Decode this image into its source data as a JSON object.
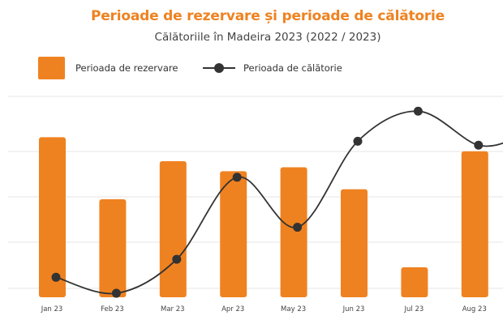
{
  "chart_data": {
    "type": "bar+line",
    "title": "Perioade de rezervare și perioade de călătorie",
    "subtitle": "Călătoriile în Madeira 2023 (2022 / 2023)",
    "categories": [
      "Jan 23",
      "Feb 23",
      "Mar 23",
      "Apr 23",
      "May 23",
      "Jun 23",
      "Jul 23",
      "Aug 23"
    ],
    "series": [
      {
        "name": "Perioada de rezervare",
        "type": "bar",
        "color": "#ef8220",
        "values": [
          80,
          49,
          68,
          63,
          65,
          54,
          15,
          73
        ]
      },
      {
        "name": "Perioada de călătorie",
        "type": "line",
        "color": "#333333",
        "values": [
          10,
          2,
          19,
          60,
          35,
          78,
          93,
          76
        ]
      }
    ],
    "ylim": [
      0,
      100
    ],
    "y_axis_labels_shown": false,
    "grid": true,
    "legend": "top-left"
  }
}
